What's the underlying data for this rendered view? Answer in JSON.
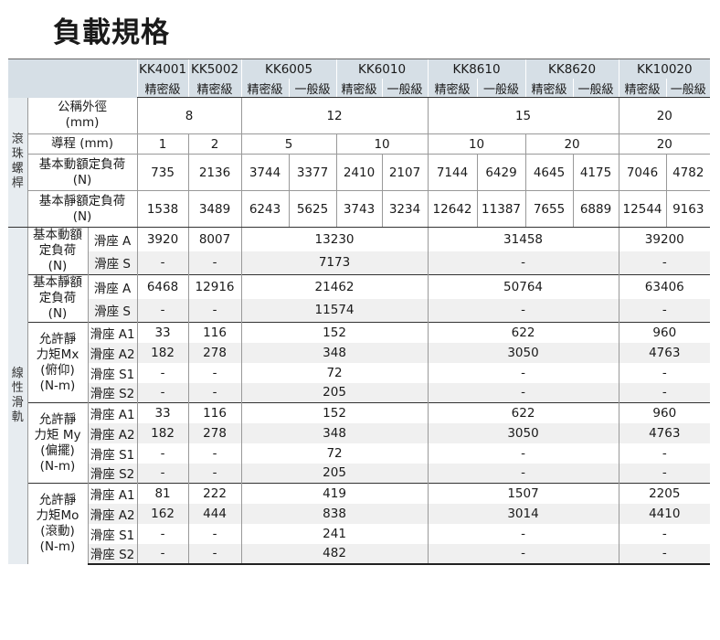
{
  "title": "負載規格",
  "models": [
    "KK4001",
    "KK5002",
    "KK6005",
    "KK6010",
    "KK8610",
    "KK8620",
    "KK10020"
  ],
  "grades": [
    "精密級",
    "精密級",
    "精密級",
    "一般級",
    "精密級",
    "一般級",
    "精密級",
    "一般級",
    "精密級",
    "一般級",
    "精密級",
    "一般級"
  ],
  "ball_screw": {
    "group": "滾珠螺桿",
    "diameter": {
      "label": "公稱外徑\n(mm)",
      "values": [
        "8",
        "12",
        "15",
        "20"
      ]
    },
    "lead": {
      "label": "導程 (mm)",
      "values": [
        "1",
        "2",
        "5",
        "10",
        "10",
        "20",
        "20"
      ]
    },
    "dynamic": {
      "label": "基本動額定負荷\n(N)",
      "values": [
        "735",
        "2136",
        "3744",
        "3377",
        "2410",
        "2107",
        "7144",
        "6429",
        "4645",
        "4175",
        "7046",
        "4782"
      ]
    },
    "static": {
      "label": "基本靜額定負荷\n(N)",
      "values": [
        "1538",
        "3489",
        "6243",
        "5625",
        "3743",
        "3234",
        "12642",
        "11387",
        "7655",
        "6889",
        "12544",
        "9163"
      ]
    }
  },
  "guide": {
    "group": "線性滑軌",
    "dynamic": {
      "label": "基本動額\n定負荷\n(N)",
      "rows": [
        {
          "sub": "滑座 A",
          "values": [
            "3920",
            "8007",
            "13230",
            "31458",
            "39200"
          ]
        },
        {
          "sub": "滑座 S",
          "values": [
            "-",
            "-",
            "7173",
            "-",
            "-"
          ]
        }
      ]
    },
    "static": {
      "label": "基本靜額\n定負荷\n(N)",
      "rows": [
        {
          "sub": "滑座 A",
          "values": [
            "6468",
            "12916",
            "21462",
            "50764",
            "63406"
          ]
        },
        {
          "sub": "滑座 S",
          "values": [
            "-",
            "-",
            "11574",
            "-",
            "-"
          ]
        }
      ]
    },
    "mx": {
      "label": "允許靜\n力矩Mx\n(俯仰)\n(N-m)",
      "rows": [
        {
          "sub": "滑座 A1",
          "values": [
            "33",
            "116",
            "152",
            "622",
            "960"
          ]
        },
        {
          "sub": "滑座 A2",
          "values": [
            "182",
            "278",
            "348",
            "3050",
            "4763"
          ]
        },
        {
          "sub": "滑座 S1",
          "values": [
            "-",
            "-",
            "72",
            "-",
            "-"
          ]
        },
        {
          "sub": "滑座 S2",
          "values": [
            "-",
            "-",
            "205",
            "-",
            "-"
          ]
        }
      ]
    },
    "my": {
      "label": "允許靜\n力矩 My\n(偏擺)\n(N-m)",
      "rows": [
        {
          "sub": "滑座 A1",
          "values": [
            "33",
            "116",
            "152",
            "622",
            "960"
          ]
        },
        {
          "sub": "滑座 A2",
          "values": [
            "182",
            "278",
            "348",
            "3050",
            "4763"
          ]
        },
        {
          "sub": "滑座 S1",
          "values": [
            "-",
            "-",
            "72",
            "-",
            "-"
          ]
        },
        {
          "sub": "滑座 S2",
          "values": [
            "-",
            "-",
            "205",
            "-",
            "-"
          ]
        }
      ]
    },
    "mo": {
      "label": "允許靜\n力矩Mo\n(滾動)\n(N-m)",
      "rows": [
        {
          "sub": "滑座 A1",
          "values": [
            "81",
            "222",
            "419",
            "1507",
            "2205"
          ]
        },
        {
          "sub": "滑座 A2",
          "values": [
            "162",
            "444",
            "838",
            "3014",
            "4410"
          ]
        },
        {
          "sub": "滑座 S1",
          "values": [
            "-",
            "-",
            "241",
            "-",
            "-"
          ]
        },
        {
          "sub": "滑座 S2",
          "values": [
            "-",
            "-",
            "482",
            "-",
            "-"
          ]
        }
      ]
    }
  }
}
